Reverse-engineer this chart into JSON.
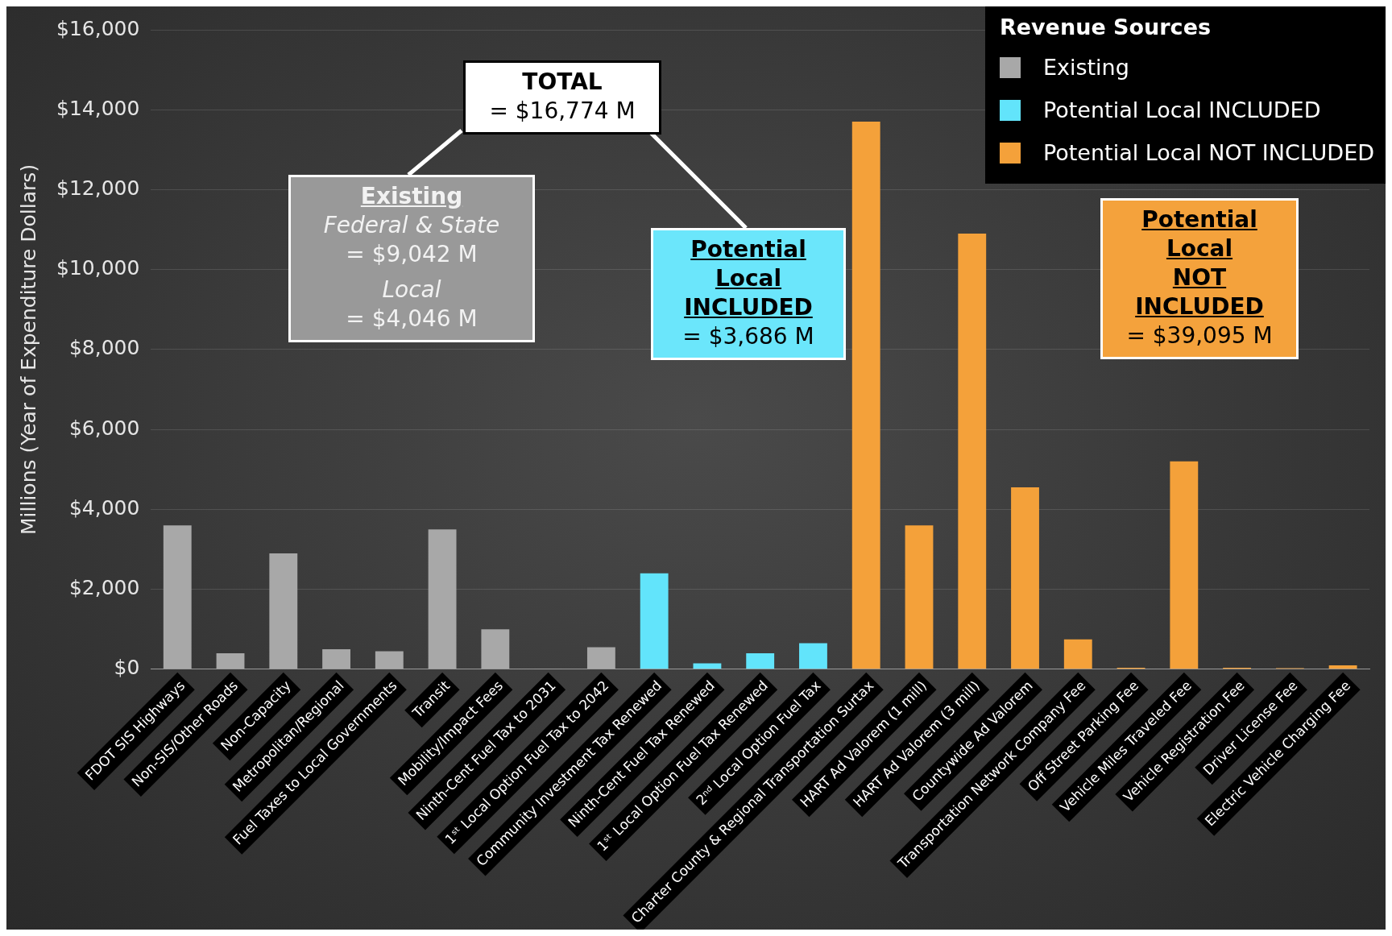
{
  "chart_data": {
    "type": "bar",
    "ylabel": "Millions (Year of Expenditure Dollars)",
    "legend_title": "Revenue Sources",
    "legend": "top right",
    "grid": "y",
    "categories": [
      "FDOT SIS Highways",
      "Non-SIS/Other Roads",
      "Non-Capacity",
      "Metropolitan/Regional",
      "Fuel Taxes to Local Governments",
      "Transit",
      "Mobility/Impact Fees",
      "Ninth-Cent Fuel Tax to 2031",
      "1ˢᵗ Local Option Fuel Tax to 2042",
      "Community Investment Tax Renewed",
      "Ninth-Cent Fuel Tax Renewed",
      "1ˢᵗ Local Option Fuel Tax Renewed",
      "2ⁿᵈ Local Option Fuel Tax",
      "Charter County & Regional Transportation Surtax",
      "HART Ad Valorem (1 mill)",
      "HART Ad Valorem (3 mill)",
      "Countywide Ad Valorem",
      "Transportation Network Company Fee",
      "Off Street Parking Fee",
      "Vehicle Miles Traveled Fee",
      "Vehicle Registration Fee",
      "Driver License Fee",
      "Electric Vehicle Charging Fee"
    ],
    "series": [
      {
        "name": "Existing",
        "color": "#a8a8a8",
        "values": [
          3600,
          400,
          2900,
          500,
          450,
          3500,
          1000,
          20,
          550,
          null,
          null,
          null,
          null,
          null,
          null,
          null,
          null,
          null,
          null,
          null,
          null,
          null,
          null
        ]
      },
      {
        "name": "Potential Local INCLUDED",
        "color": "#62e4fb",
        "values": [
          null,
          null,
          null,
          null,
          null,
          null,
          null,
          null,
          null,
          2400,
          150,
          400,
          650,
          null,
          null,
          null,
          null,
          null,
          null,
          null,
          null,
          null,
          null
        ]
      },
      {
        "name": "Potential Local NOT INCLUDED",
        "color": "#f4a13a",
        "values": [
          null,
          null,
          null,
          null,
          null,
          null,
          null,
          null,
          null,
          null,
          null,
          null,
          null,
          13700,
          3600,
          10900,
          4550,
          750,
          40,
          5200,
          40,
          30,
          100
        ]
      }
    ],
    "ylim": [
      0,
      16000
    ],
    "yticks": [
      {
        "value": 0,
        "label": "$0"
      },
      {
        "value": 2000,
        "label": "$2,000"
      },
      {
        "value": 4000,
        "label": "$4,000"
      },
      {
        "value": 6000,
        "label": "$6,000"
      },
      {
        "value": 8000,
        "label": "$8,000"
      },
      {
        "value": 10000,
        "label": "$10,000"
      },
      {
        "value": 12000,
        "label": "$12,000"
      },
      {
        "value": 14000,
        "label": "$14,000"
      },
      {
        "value": 16000,
        "label": "$16,000"
      }
    ],
    "annotations": [
      "TOTAL\n= $16,774 M",
      "Existing\nFederal & State\n= $9,042 M\nLocal\n= $4,046 M",
      "Potential\nLocal\nINCLUDED\n= $3,686 M",
      "Potential\nLocal\nNOT\nINCLUDED\n= $39,095 M"
    ]
  }
}
